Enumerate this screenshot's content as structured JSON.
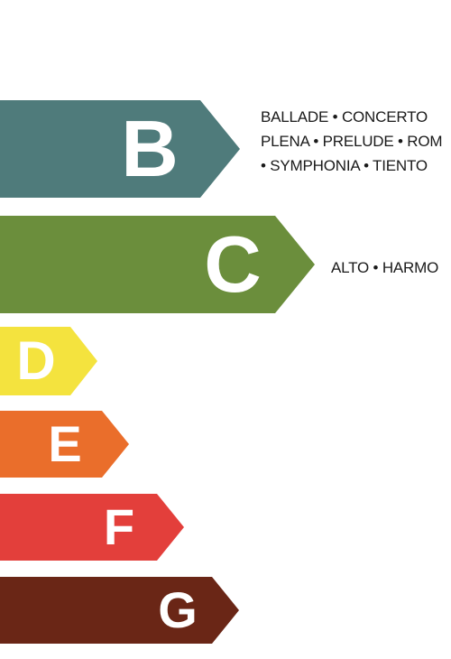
{
  "energy_scale": {
    "bands": [
      {
        "id": "b",
        "letter": "B",
        "color": "#4f7b7b",
        "models_lines": [
          "BALLADE • CONCERTO",
          "PLENA • PRELUDE • ROM",
          "• SYMPHONIA • TIENTO"
        ]
      },
      {
        "id": "c",
        "letter": "C",
        "color": "#6b8e3c",
        "models_lines": [
          "ALTO • HARMO"
        ]
      },
      {
        "id": "d",
        "letter": "D",
        "color": "#f4e33e"
      },
      {
        "id": "e",
        "letter": "E",
        "color": "#ea6e2b"
      },
      {
        "id": "f",
        "letter": "F",
        "color": "#e33f3b"
      },
      {
        "id": "g",
        "letter": "G",
        "color": "#6a2616"
      }
    ]
  }
}
